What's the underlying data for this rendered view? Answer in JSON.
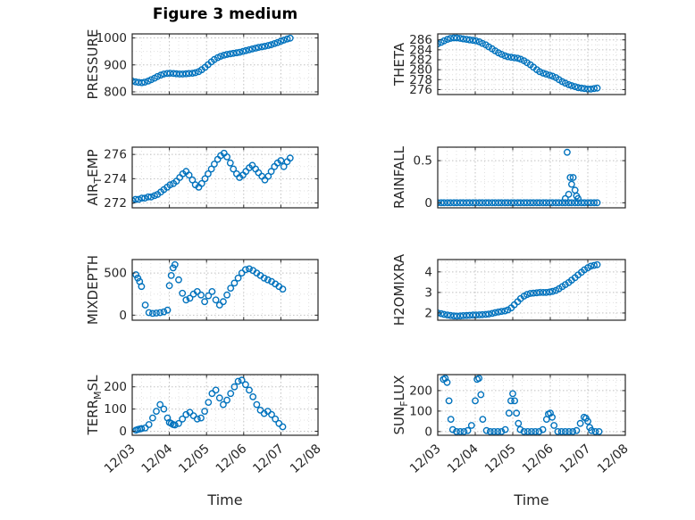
{
  "figure": {
    "xlabel": "Time",
    "background": "#ffffff",
    "marker_color": "#0072BD",
    "axis_color": "#262626",
    "grid_color": "#c0c0c0",
    "minor_grid_color": "#e0e0e0"
  },
  "x_axis": {
    "range": [
      0,
      5
    ],
    "ticks": [
      0,
      1,
      2,
      3,
      4,
      5
    ],
    "tick_labels": [
      "12/03",
      "12/04",
      "12/05",
      "12/06",
      "12/07",
      "12/08"
    ],
    "minor_step": 0.25
  },
  "chart_data": [
    {
      "id": "pressure",
      "subplot_title": "Figure 3 medium",
      "type": "scatter",
      "row": 0,
      "col": 0,
      "ylabel": [
        {
          "text": "PRESSURE",
          "sub": false
        }
      ],
      "ylim": [
        790,
        1015
      ],
      "yticks": [
        800,
        900,
        1000
      ],
      "ytick_labels": [
        "800",
        "900",
        "1000"
      ],
      "x": [
        0,
        0.09,
        0.17,
        0.26,
        0.34,
        0.43,
        0.51,
        0.6,
        0.68,
        0.77,
        0.85,
        0.94,
        1.02,
        1.11,
        1.19,
        1.28,
        1.36,
        1.45,
        1.53,
        1.62,
        1.7,
        1.79,
        1.87,
        1.96,
        2.04,
        2.13,
        2.21,
        2.3,
        2.38,
        2.47,
        2.55,
        2.64,
        2.72,
        2.81,
        2.89,
        2.98,
        3.06,
        3.15,
        3.23,
        3.32,
        3.4,
        3.49,
        3.57,
        3.66,
        3.74,
        3.83,
        3.91,
        4,
        4.08,
        4.17,
        4.25
      ],
      "y": [
        840,
        837,
        835,
        834,
        836,
        840,
        845,
        851,
        857,
        862,
        866,
        868,
        869,
        868,
        867,
        866,
        866,
        867,
        868,
        869,
        871,
        875,
        882,
        891,
        901,
        911,
        920,
        927,
        932,
        936,
        939,
        941,
        943,
        945,
        947,
        950,
        953,
        956,
        959,
        962,
        965,
        967,
        969,
        972,
        975,
        979,
        983,
        988,
        992,
        996,
        999
      ]
    },
    {
      "id": "theta",
      "type": "scatter",
      "row": 0,
      "col": 1,
      "ylabel": [
        {
          "text": "THETA",
          "sub": false
        }
      ],
      "ylim": [
        275,
        287.2
      ],
      "yticks": [
        276,
        278,
        280,
        282,
        284,
        286
      ],
      "ytick_labels": [
        "276",
        "278",
        "280",
        "282",
        "284",
        "286"
      ],
      "x": [
        0,
        0.09,
        0.17,
        0.26,
        0.34,
        0.43,
        0.51,
        0.6,
        0.68,
        0.77,
        0.85,
        0.94,
        1.02,
        1.11,
        1.19,
        1.28,
        1.36,
        1.45,
        1.53,
        1.62,
        1.7,
        1.79,
        1.87,
        1.96,
        2.04,
        2.13,
        2.21,
        2.3,
        2.38,
        2.47,
        2.55,
        2.64,
        2.72,
        2.81,
        2.89,
        2.98,
        3.06,
        3.15,
        3.23,
        3.32,
        3.4,
        3.49,
        3.57,
        3.66,
        3.74,
        3.83,
        3.91,
        4,
        4.08,
        4.17,
        4.25
      ],
      "y": [
        285.2,
        285.5,
        285.8,
        286.1,
        286.3,
        286.4,
        286.4,
        286.3,
        286.2,
        286.1,
        286,
        285.9,
        285.8,
        285.6,
        285.3,
        285,
        284.6,
        284.2,
        283.8,
        283.4,
        283.1,
        282.8,
        282.6,
        282.5,
        282.4,
        282.3,
        282.1,
        281.8,
        281.4,
        281,
        280.5,
        280,
        279.6,
        279.3,
        279.1,
        278.9,
        278.7,
        278.4,
        278,
        277.6,
        277.3,
        277,
        276.8,
        276.6,
        276.4,
        276.3,
        276.2,
        276.1,
        276.1,
        276.2,
        276.3
      ]
    },
    {
      "id": "airtemp",
      "type": "scatter",
      "row": 1,
      "col": 0,
      "ylabel": [
        {
          "text": "AIR",
          "sub": false
        },
        {
          "text": "T",
          "sub": true
        },
        {
          "text": "EMP",
          "sub": false
        }
      ],
      "ylim": [
        271.6,
        276.6
      ],
      "yticks": [
        272,
        274,
        276
      ],
      "ytick_labels": [
        "272",
        "274",
        "276"
      ],
      "x": [
        0,
        0.09,
        0.17,
        0.26,
        0.34,
        0.43,
        0.51,
        0.6,
        0.68,
        0.77,
        0.85,
        0.94,
        1.02,
        1.11,
        1.19,
        1.28,
        1.36,
        1.45,
        1.53,
        1.62,
        1.7,
        1.79,
        1.87,
        1.96,
        2.04,
        2.13,
        2.21,
        2.3,
        2.38,
        2.47,
        2.55,
        2.64,
        2.72,
        2.81,
        2.89,
        2.98,
        3.06,
        3.15,
        3.23,
        3.32,
        3.4,
        3.49,
        3.57,
        3.66,
        3.74,
        3.83,
        3.91,
        4,
        4.08,
        4.17,
        4.25
      ],
      "y": [
        272.2,
        272.3,
        272.3,
        272.4,
        272.4,
        272.5,
        272.5,
        272.6,
        272.7,
        272.9,
        273.1,
        273.3,
        273.5,
        273.6,
        273.8,
        274.1,
        274.4,
        274.6,
        274.3,
        273.9,
        273.5,
        273.3,
        273.6,
        274,
        274.4,
        274.8,
        275.2,
        275.6,
        275.9,
        276.1,
        275.8,
        275.3,
        274.8,
        274.4,
        274.1,
        274.3,
        274.6,
        274.9,
        275.1,
        274.8,
        274.5,
        274.2,
        273.9,
        274.2,
        274.6,
        275,
        275.3,
        275.5,
        275,
        275.4,
        275.7
      ]
    },
    {
      "id": "rainfall",
      "type": "scatter",
      "row": 1,
      "col": 1,
      "ylabel": [
        {
          "text": "RAINFALL",
          "sub": false
        }
      ],
      "ylim": [
        -0.06,
        0.66
      ],
      "yticks": [
        0,
        0.5
      ],
      "ytick_labels": [
        "0",
        "0.5"
      ],
      "x": [
        0,
        0.09,
        0.17,
        0.26,
        0.34,
        0.43,
        0.51,
        0.6,
        0.68,
        0.77,
        0.85,
        0.94,
        1.02,
        1.11,
        1.19,
        1.28,
        1.36,
        1.45,
        1.53,
        1.62,
        1.7,
        1.79,
        1.87,
        1.96,
        2.04,
        2.13,
        2.21,
        2.3,
        2.38,
        2.47,
        2.55,
        2.64,
        2.72,
        2.81,
        2.89,
        2.98,
        3.06,
        3.15,
        3.23,
        3.32,
        3.4,
        3.49,
        3.57,
        3.66,
        3.74,
        3.83,
        3.91,
        4,
        4.08,
        4.17,
        4.25,
        3.4,
        3.45,
        3.49,
        3.53,
        3.57,
        3.61,
        3.66,
        3.7,
        3.74
      ],
      "y": [
        0,
        0,
        0,
        0,
        0,
        0,
        0,
        0,
        0,
        0,
        0,
        0,
        0,
        0,
        0,
        0,
        0,
        0,
        0,
        0,
        0,
        0,
        0,
        0,
        0,
        0,
        0,
        0,
        0,
        0,
        0,
        0,
        0,
        0,
        0,
        0,
        0,
        0,
        0,
        0,
        0,
        0,
        0,
        0,
        0,
        0,
        0,
        0,
        0,
        0,
        0,
        0.05,
        0.6,
        0.1,
        0.3,
        0.22,
        0.3,
        0.15,
        0.08,
        0.05
      ]
    },
    {
      "id": "mixdepth",
      "type": "scatter",
      "row": 2,
      "col": 0,
      "ylabel": [
        {
          "text": "MIXDEPTH",
          "sub": false
        }
      ],
      "ylim": [
        -60,
        660
      ],
      "yticks": [
        0,
        500
      ],
      "ytick_labels": [
        "0",
        "500"
      ],
      "x": [
        0.1,
        0.15,
        0.2,
        0.25,
        0.35,
        0.45,
        0.55,
        0.65,
        0.75,
        0.85,
        0.95,
        1,
        1.05,
        1.1,
        1.15,
        1.25,
        1.35,
        1.45,
        1.55,
        1.65,
        1.75,
        1.85,
        1.95,
        2.05,
        2.15,
        2.25,
        2.35,
        2.45,
        2.55,
        2.65,
        2.75,
        2.85,
        2.95,
        3.05,
        3.15,
        3.25,
        3.35,
        3.45,
        3.55,
        3.65,
        3.75,
        3.85,
        3.95,
        4.05
      ],
      "y": [
        480,
        440,
        400,
        340,
        120,
        30,
        20,
        25,
        30,
        40,
        60,
        350,
        470,
        560,
        600,
        420,
        260,
        180,
        200,
        250,
        280,
        240,
        160,
        230,
        280,
        180,
        120,
        160,
        240,
        320,
        380,
        440,
        500,
        540,
        550,
        530,
        500,
        470,
        440,
        420,
        400,
        370,
        340,
        310
      ]
    },
    {
      "id": "h2omixra",
      "type": "scatter",
      "row": 2,
      "col": 1,
      "ylabel": [
        {
          "text": "H2OMIXRA",
          "sub": false
        }
      ],
      "ylim": [
        1.65,
        4.6
      ],
      "yticks": [
        2,
        3,
        4
      ],
      "ytick_labels": [
        "2",
        "3",
        "4"
      ],
      "x": [
        0,
        0.09,
        0.17,
        0.26,
        0.34,
        0.43,
        0.51,
        0.6,
        0.68,
        0.77,
        0.85,
        0.94,
        1.02,
        1.11,
        1.19,
        1.28,
        1.36,
        1.45,
        1.53,
        1.62,
        1.7,
        1.79,
        1.87,
        1.96,
        2.04,
        2.13,
        2.21,
        2.3,
        2.38,
        2.47,
        2.55,
        2.64,
        2.72,
        2.81,
        2.89,
        2.98,
        3.06,
        3.15,
        3.23,
        3.32,
        3.4,
        3.49,
        3.57,
        3.66,
        3.74,
        3.83,
        3.91,
        4,
        4.08,
        4.17,
        4.25
      ],
      "y": [
        2,
        1.97,
        1.93,
        1.9,
        1.88,
        1.86,
        1.85,
        1.86,
        1.87,
        1.88,
        1.89,
        1.9,
        1.9,
        1.91,
        1.92,
        1.93,
        1.95,
        1.98,
        2.02,
        2.05,
        2.08,
        2.1,
        2.15,
        2.25,
        2.4,
        2.55,
        2.7,
        2.82,
        2.9,
        2.95,
        2.97,
        2.98,
        3,
        3,
        3,
        3.02,
        3.05,
        3.1,
        3.18,
        3.28,
        3.38,
        3.48,
        3.6,
        3.72,
        3.85,
        3.98,
        4.1,
        4.2,
        4.28,
        4.32,
        4.35
      ]
    },
    {
      "id": "terrmsl",
      "type": "scatter",
      "row": 3,
      "col": 0,
      "ylabel": [
        {
          "text": "TERR",
          "sub": false
        },
        {
          "text": "M",
          "sub": true
        },
        {
          "text": "SL",
          "sub": false
        }
      ],
      "ylim": [
        -18,
        255
      ],
      "yticks": [
        0,
        100,
        200
      ],
      "ytick_labels": [
        "0",
        "100",
        "200"
      ],
      "x": [
        0.1,
        0.15,
        0.2,
        0.25,
        0.35,
        0.45,
        0.55,
        0.65,
        0.75,
        0.85,
        0.95,
        1,
        1.05,
        1.1,
        1.15,
        1.25,
        1.35,
        1.45,
        1.55,
        1.65,
        1.75,
        1.85,
        1.95,
        2.05,
        2.15,
        2.25,
        2.35,
        2.45,
        2.55,
        2.65,
        2.75,
        2.85,
        2.95,
        3.05,
        3.15,
        3.25,
        3.35,
        3.45,
        3.55,
        3.65,
        3.75,
        3.85,
        3.95,
        4.05
      ],
      "y": [
        5,
        8,
        10,
        12,
        15,
        30,
        60,
        90,
        120,
        100,
        60,
        40,
        35,
        30,
        28,
        35,
        55,
        75,
        85,
        70,
        55,
        60,
        90,
        130,
        170,
        185,
        150,
        120,
        140,
        170,
        200,
        225,
        230,
        210,
        185,
        155,
        120,
        95,
        80,
        90,
        75,
        55,
        35,
        20
      ]
    },
    {
      "id": "sunflux",
      "type": "scatter",
      "row": 3,
      "col": 1,
      "ylabel": [
        {
          "text": "SUN",
          "sub": false
        },
        {
          "text": "F",
          "sub": true
        },
        {
          "text": "LUX",
          "sub": false
        }
      ],
      "ylim": [
        -18,
        278
      ],
      "yticks": [
        0,
        100,
        200
      ],
      "ytick_labels": [
        "0",
        "100",
        "200"
      ],
      "x": [
        0.15,
        0.2,
        0.25,
        0.3,
        0.35,
        0.4,
        0.5,
        0.6,
        0.7,
        0.8,
        0.9,
        1,
        1.05,
        1.1,
        1.15,
        1.2,
        1.3,
        1.4,
        1.5,
        1.6,
        1.7,
        1.8,
        1.9,
        1.95,
        2,
        2.05,
        2.1,
        2.15,
        2.2,
        2.3,
        2.4,
        2.5,
        2.6,
        2.7,
        2.8,
        2.9,
        2.95,
        3,
        3.05,
        3.1,
        3.2,
        3.3,
        3.4,
        3.5,
        3.6,
        3.7,
        3.8,
        3.9,
        3.95,
        4,
        4.05,
        4.1,
        4.2,
        4.3
      ],
      "y": [
        255,
        260,
        240,
        150,
        60,
        10,
        0,
        0,
        0,
        5,
        30,
        150,
        255,
        260,
        180,
        60,
        5,
        0,
        0,
        0,
        0,
        10,
        90,
        150,
        185,
        150,
        90,
        40,
        10,
        0,
        0,
        0,
        0,
        0,
        10,
        60,
        85,
        90,
        70,
        30,
        0,
        0,
        0,
        0,
        0,
        5,
        40,
        70,
        65,
        50,
        20,
        5,
        0,
        0
      ]
    }
  ]
}
